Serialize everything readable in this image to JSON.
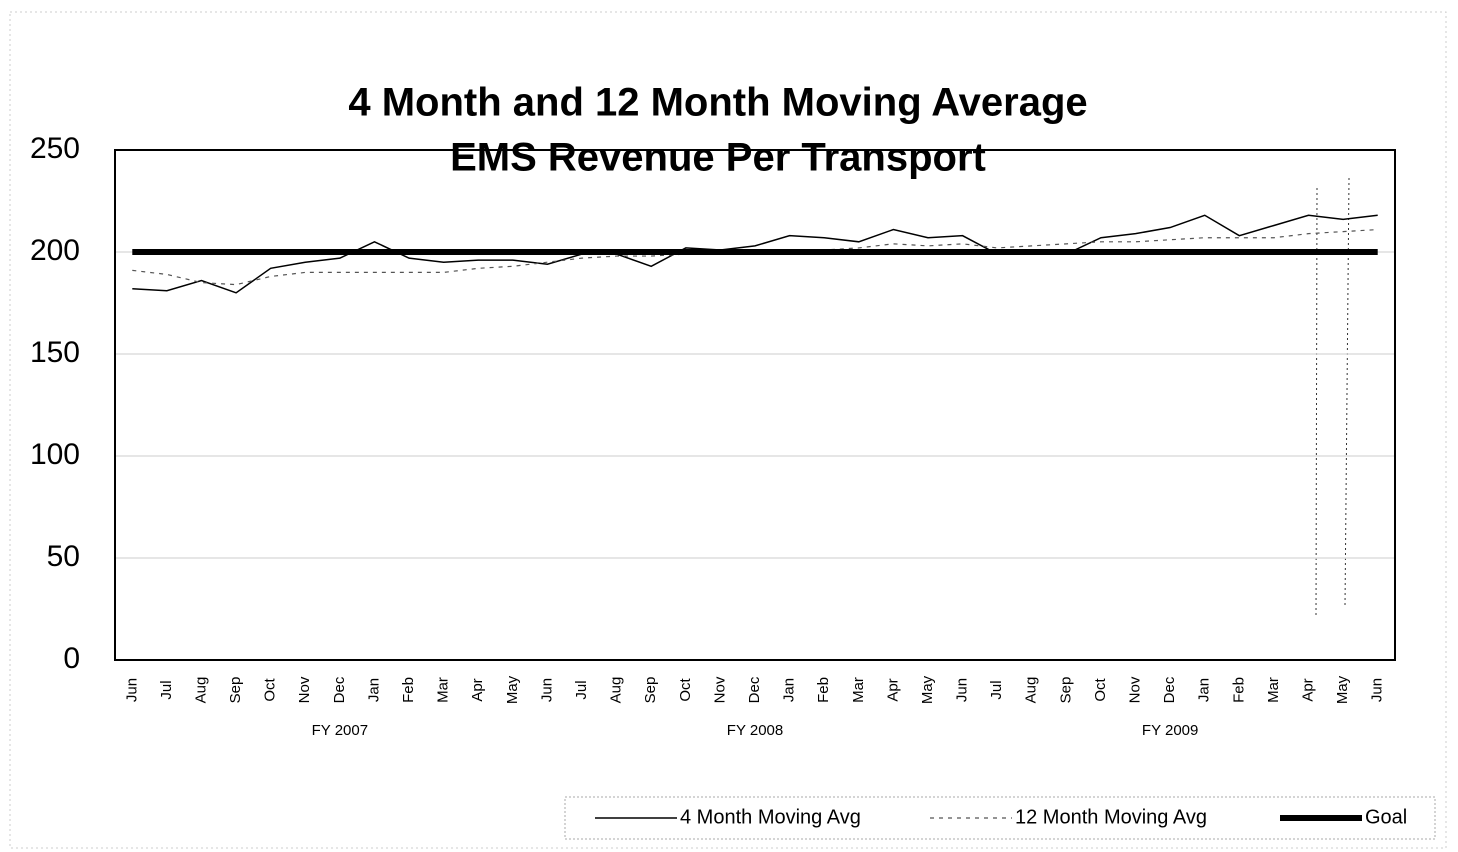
{
  "chart_data": {
    "type": "line",
    "title": "4 Month and 12 Month Moving Average",
    "subtitle": "EMS Revenue Per Transport",
    "categories": [
      "Jun",
      "Jul",
      "Aug",
      "Sep",
      "Oct",
      "Nov",
      "Dec",
      "Jan",
      "Feb",
      "Mar",
      "Apr",
      "May",
      "Jun",
      "Jul",
      "Aug",
      "Sep",
      "Oct",
      "Nov",
      "Dec",
      "Jan",
      "Feb",
      "Mar",
      "Apr",
      "May",
      "Jun",
      "Jul",
      "Aug",
      "Sep",
      "Oct",
      "Nov",
      "Dec",
      "Jan",
      "Feb",
      "Mar",
      "Apr",
      "May",
      "Jun"
    ],
    "groups": [
      {
        "label": "FY 2007",
        "start": 0,
        "end": 12
      },
      {
        "label": "FY 2008",
        "start": 12,
        "end": 24
      },
      {
        "label": "FY 2009",
        "start": 24,
        "end": 36
      }
    ],
    "series": [
      {
        "name": "4 Month Moving Avg",
        "color": "#000000",
        "line_width": 1.5,
        "dash": "none",
        "values": [
          182,
          181,
          186,
          180,
          192,
          195,
          197,
          205,
          197,
          195,
          196,
          196,
          194,
          199,
          199,
          193,
          202,
          201,
          203,
          208,
          207,
          205,
          211,
          207,
          208,
          199,
          199,
          199,
          207,
          209,
          212,
          218,
          208,
          213,
          218,
          216,
          218
        ]
      },
      {
        "name": "12 Month Moving Avg",
        "color": "#555555",
        "line_width": 1.2,
        "dash": "4 5",
        "values": [
          191,
          189,
          185,
          184,
          188,
          190,
          190,
          190,
          190,
          190,
          192,
          193,
          195,
          197,
          198,
          198,
          199,
          199,
          200,
          201,
          201,
          202,
          204,
          203,
          204,
          202,
          203,
          204,
          205,
          205,
          206,
          207,
          207,
          207,
          209,
          210,
          211
        ]
      },
      {
        "name": "Goal",
        "color": "#000000",
        "line_width": 6,
        "dash": "none",
        "values": [
          200,
          200,
          200,
          200,
          200,
          200,
          200,
          200,
          200,
          200,
          200,
          200,
          200,
          200,
          200,
          200,
          200,
          200,
          200,
          200,
          200,
          200,
          200,
          200,
          200,
          200,
          200,
          200,
          200,
          200,
          200,
          200,
          200,
          200,
          200,
          200,
          200
        ]
      }
    ],
    "ylim": [
      0,
      250
    ],
    "yticks": [
      0,
      50,
      100,
      150,
      200,
      250
    ],
    "grid": true,
    "legend": "bottom-right"
  }
}
